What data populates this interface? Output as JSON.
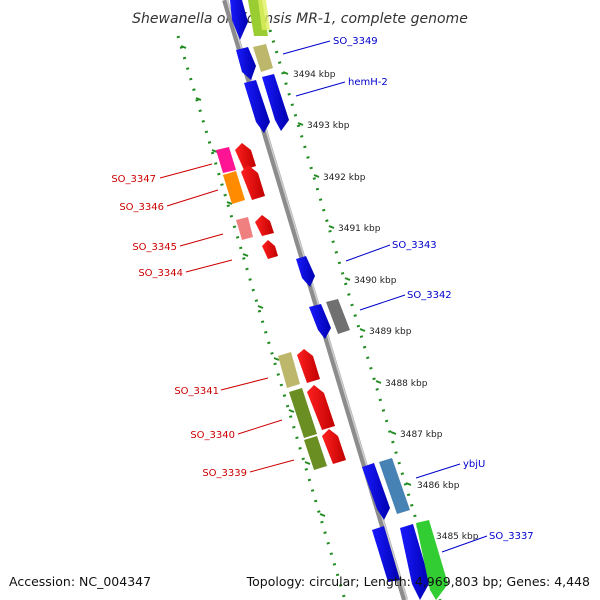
{
  "title": "Shewanella oneidensis MR-1, complete genome",
  "footer": {
    "accession": "Accession: NC_004347",
    "summary": "Topology: circular; Length: 4,969,803 bp; Genes: 4,448"
  },
  "colors": {
    "backbone": "#888888",
    "inner_ticks": "#228b22",
    "reverse_label": "#cc0000",
    "forward_label": "#0000cc"
  },
  "kbp_ticks": [
    "3494 kbp",
    "3493 kbp",
    "3492 kbp",
    "3491 kbp",
    "3490 kbp",
    "3489 kbp",
    "3488 kbp",
    "3487 kbp",
    "3486 kbp",
    "3485 kbp"
  ],
  "labels_left": [
    "SO_3347",
    "SO_3346",
    "SO_3345",
    "SO_3344",
    "SO_3341",
    "SO_3340",
    "SO_3339"
  ],
  "labels_right": [
    "SO_3349",
    "hemH-2",
    "SO_3343",
    "SO_3342",
    "ybjU",
    "SO_3337"
  ]
}
